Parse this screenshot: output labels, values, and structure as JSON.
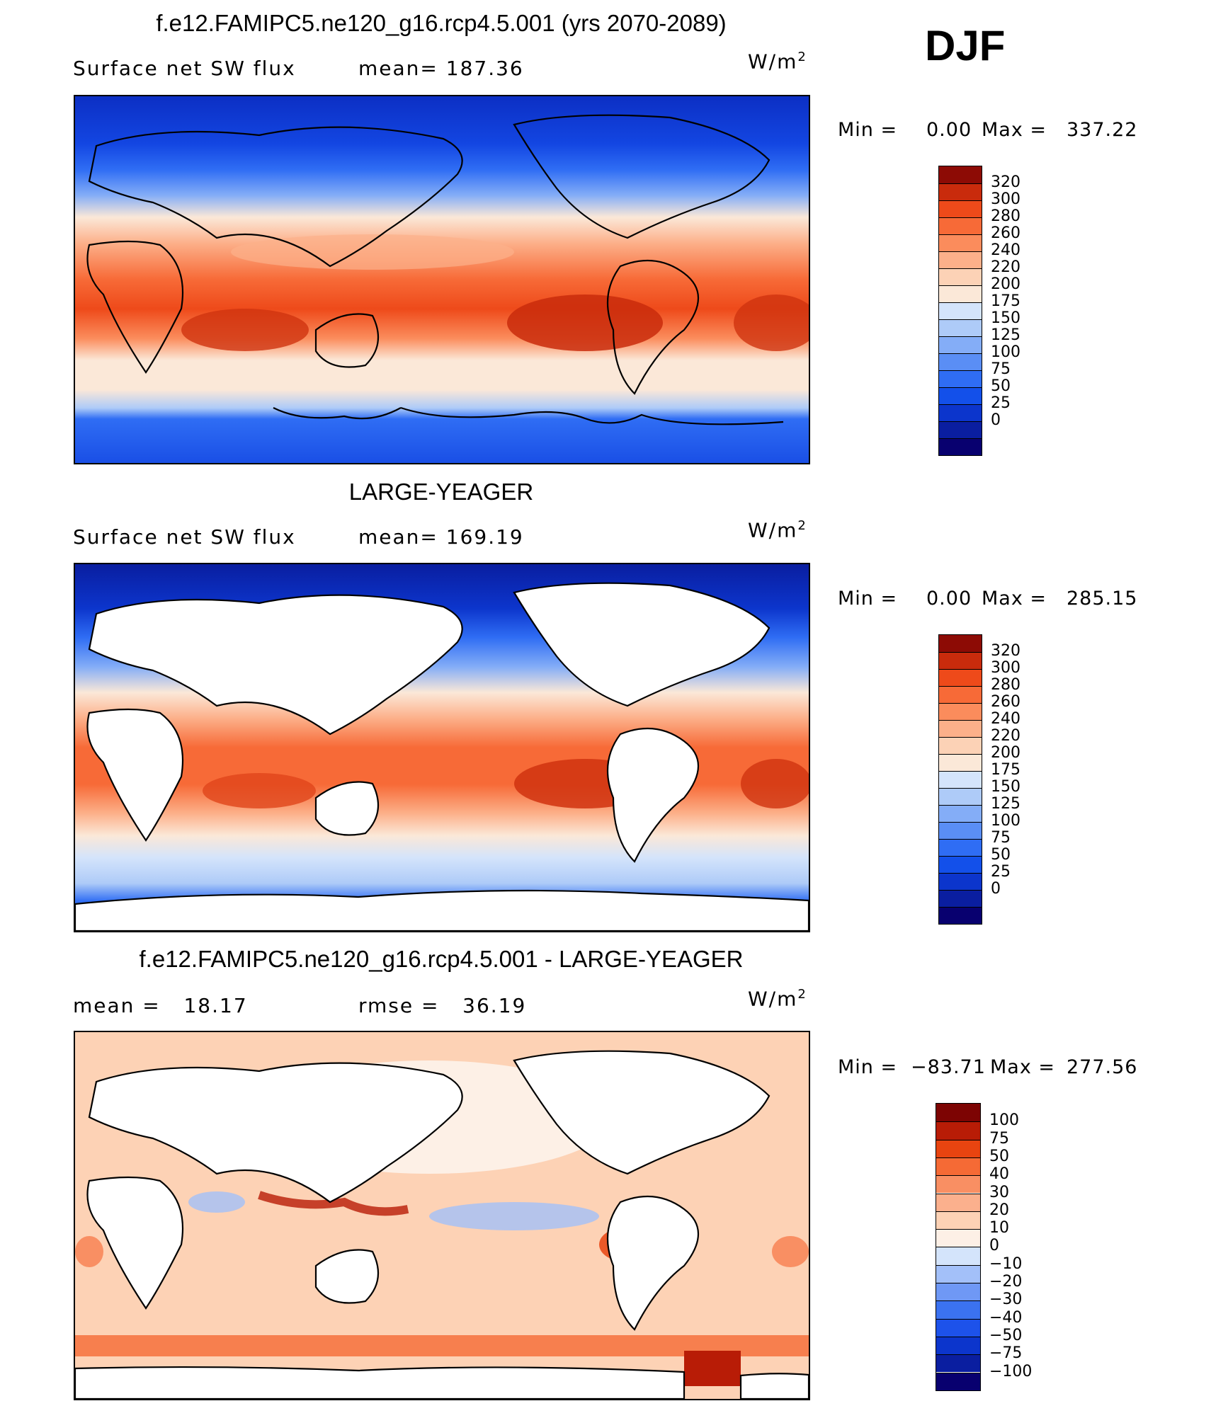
{
  "season": "DJF",
  "colors": {
    "abs_scale": [
      "#08006f",
      "#0a1ea0",
      "#0c35cc",
      "#1350ea",
      "#2f6df4",
      "#5a8ef5",
      "#84adf7",
      "#aecbf8",
      "#d4e4fb",
      "#fbe8d8",
      "#fcd2b6",
      "#fcb08a",
      "#fb8c5c",
      "#f76a37",
      "#ee4a1a",
      "#c92b0c",
      "#8d0b05"
    ],
    "diff_scale": [
      "#08006f",
      "#0a1ea0",
      "#0c35cc",
      "#1d52ea",
      "#3b72f0",
      "#6f98f5",
      "#a3c0f9",
      "#d4e4fb",
      "#fdf0e6",
      "#fdd2b5",
      "#fbb08d",
      "#f98f63",
      "#f56a35",
      "#e84410",
      "#b81c06",
      "#7d0403"
    ]
  },
  "panels": [
    {
      "title": "f.e12.FAMIPC5.ne120_g16.rcp4.5.001 (yrs 2070-2089)",
      "left_label": "Surface net SW flux",
      "stat_label": "mean= 187.36",
      "units": "W/m",
      "units_sup": "2",
      "min_label": "Min =",
      "min_value": "0.00",
      "max_label": "Max =",
      "max_value": "337.22",
      "kind": "abs",
      "land_masked": false,
      "ticks": [
        "320",
        "300",
        "280",
        "260",
        "240",
        "220",
        "200",
        "175",
        "150",
        "125",
        "100",
        "75",
        "50",
        "25",
        "0"
      ]
    },
    {
      "title": "LARGE-YEAGER",
      "left_label": "Surface net SW flux",
      "stat_label": "mean= 169.19",
      "units": "W/m",
      "units_sup": "2",
      "min_label": "Min =",
      "min_value": "0.00",
      "max_label": "Max =",
      "max_value": "285.15",
      "kind": "abs",
      "land_masked": true,
      "ticks": [
        "320",
        "300",
        "280",
        "260",
        "240",
        "220",
        "200",
        "175",
        "150",
        "125",
        "100",
        "75",
        "50",
        "25",
        "0"
      ]
    },
    {
      "title": "f.e12.FAMIPC5.ne120_g16.rcp4.5.001 - LARGE-YEAGER",
      "left_label": "mean =   18.17",
      "stat_label": "rmse =   36.19",
      "units": "W/m",
      "units_sup": "2",
      "min_label": "Min =",
      "min_value": "−83.71",
      "max_label": "Max =",
      "max_value": "277.56",
      "kind": "diff",
      "land_masked": true,
      "ticks": [
        "100",
        "75",
        "50",
        "40",
        "30",
        "20",
        "10",
        "0",
        "−10",
        "−20",
        "−30",
        "−40",
        "−50",
        "−75",
        "−100"
      ]
    }
  ]
}
